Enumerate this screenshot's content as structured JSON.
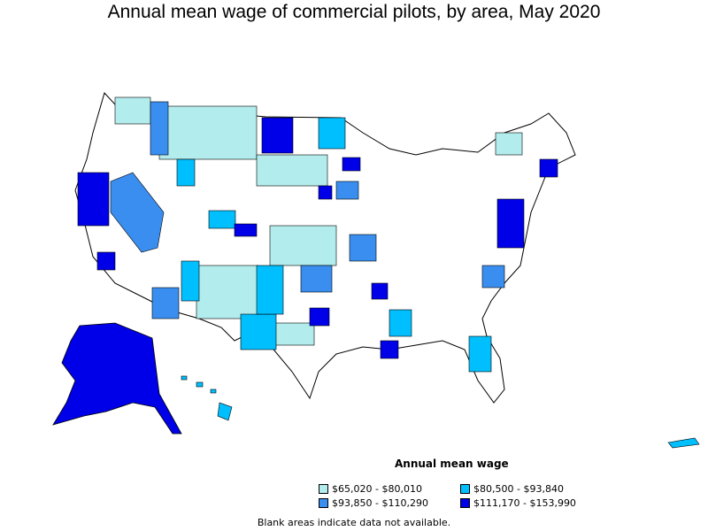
{
  "title": "Annual mean wage of commercial pilots, by area, May 2020",
  "legend": {
    "title": "Annual mean wage",
    "items": [
      {
        "label": "$65,020 - $80,010",
        "color": "#b3ecec"
      },
      {
        "label": "$80,500 - $93,840",
        "color": "#00bfff"
      },
      {
        "label": "$93,850 - $110,290",
        "color": "#3a8ef0"
      },
      {
        "label": "$111,170 - $153,990",
        "color": "#0000e8"
      }
    ]
  },
  "footnote": "Blank areas indicate data not available."
}
